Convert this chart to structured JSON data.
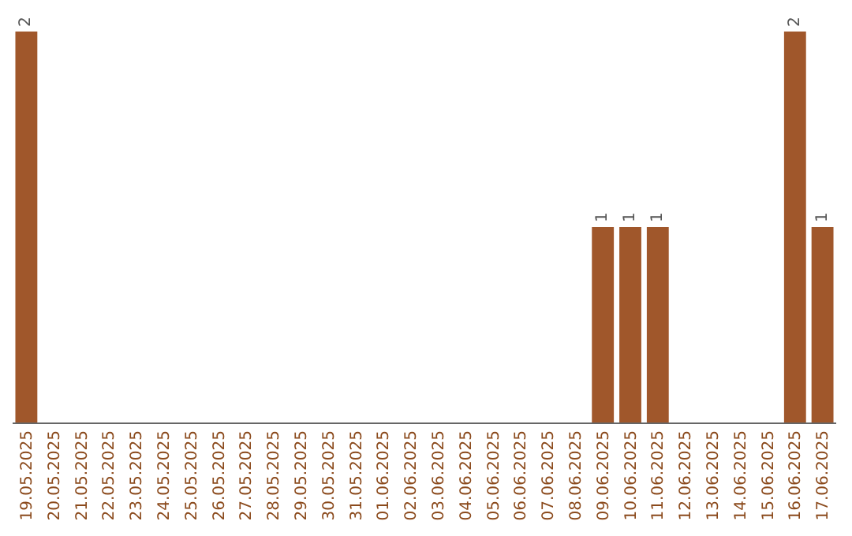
{
  "chart_data": {
    "type": "bar",
    "categories": [
      "19.05.2025",
      "20.05.2025",
      "21.05.2025",
      "22.05.2025",
      "23.05.2025",
      "24.05.2025",
      "25.05.2025",
      "26.05.2025",
      "27.05.2025",
      "28.05.2025",
      "29.05.2025",
      "30.05.2025",
      "31.05.2025",
      "01.06.2025",
      "02.06.2025",
      "03.06.2025",
      "04.06.2025",
      "05.06.2025",
      "06.06.2025",
      "07.06.2025",
      "08.06.2025",
      "09.06.2025",
      "10.06.2025",
      "11.06.2025",
      "12.06.2025",
      "13.06.2025",
      "14.06.2025",
      "15.06.2025",
      "16.06.2025",
      "17.06.2025"
    ],
    "values": [
      2,
      0,
      0,
      0,
      0,
      0,
      0,
      0,
      0,
      0,
      0,
      0,
      0,
      0,
      0,
      0,
      0,
      0,
      0,
      0,
      0,
      1,
      1,
      1,
      0,
      0,
      0,
      0,
      2,
      1
    ],
    "value_labels": [
      "2",
      null,
      null,
      null,
      null,
      null,
      null,
      null,
      null,
      null,
      null,
      null,
      null,
      null,
      null,
      null,
      null,
      null,
      null,
      null,
      null,
      "1",
      "1",
      "1",
      null,
      null,
      null,
      null,
      "2",
      "1"
    ],
    "color": "#a0572b",
    "tick_labels": "x"
  }
}
